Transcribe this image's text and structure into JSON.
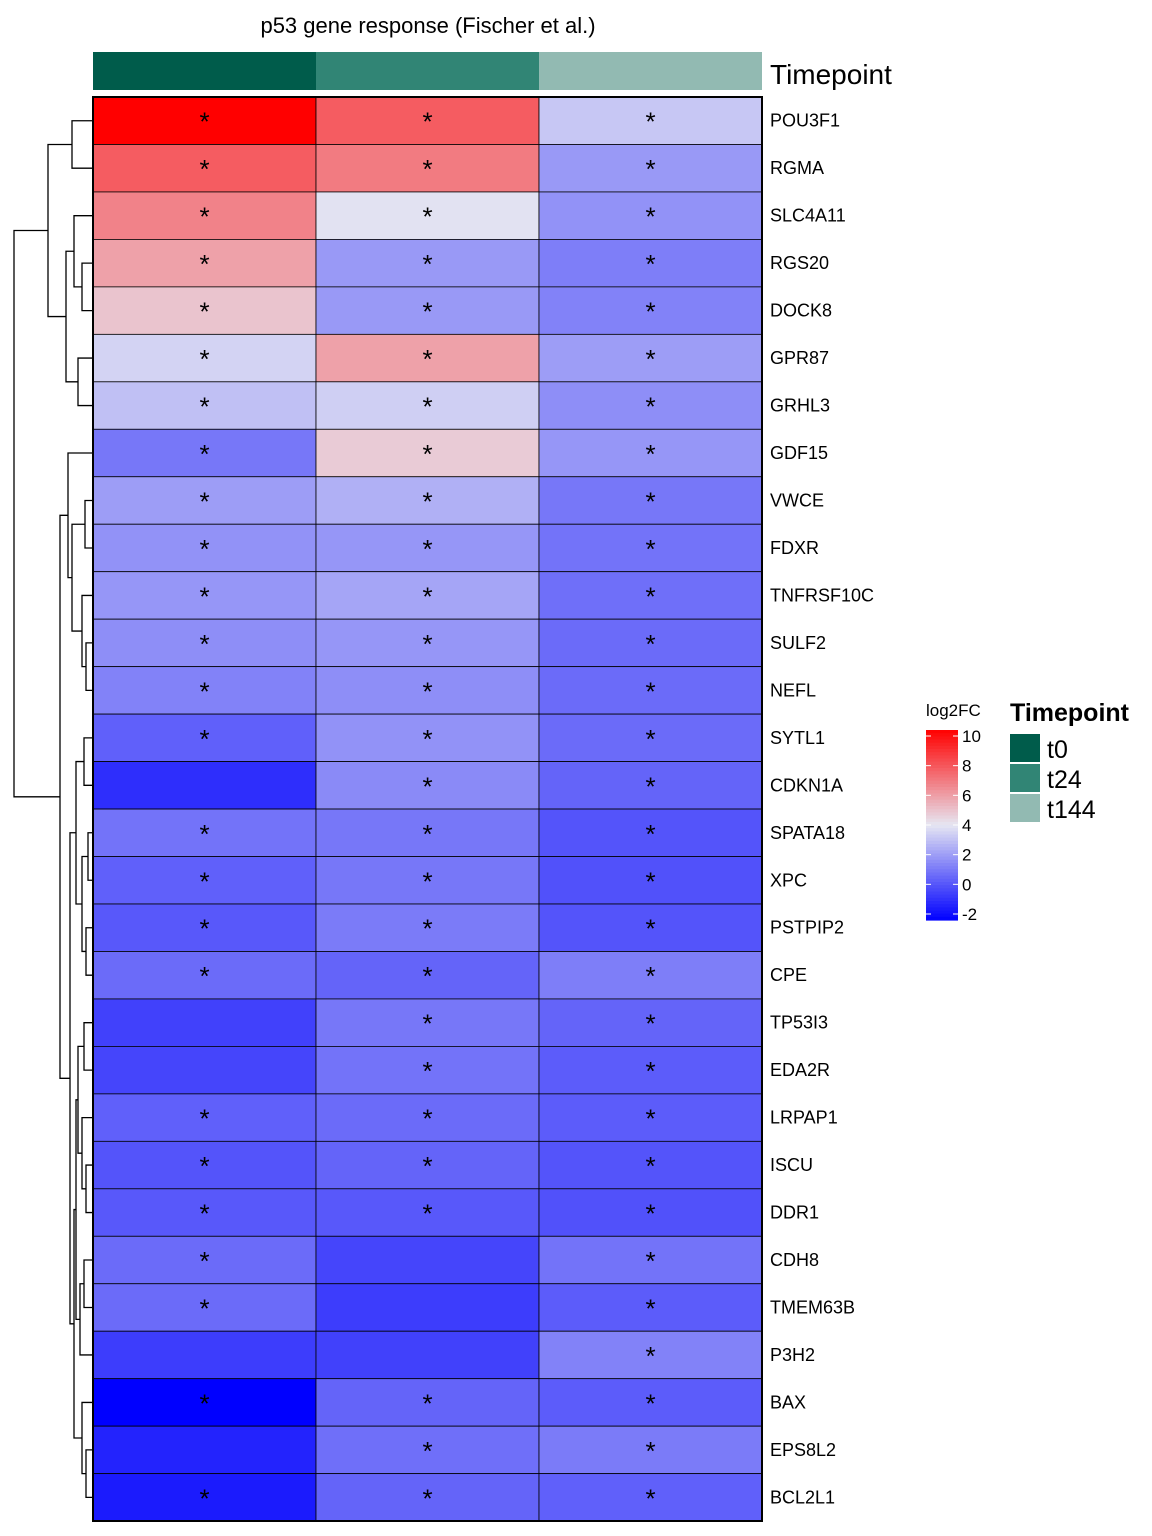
{
  "chart_data": {
    "type": "heatmap",
    "title": "p53 gene response (Fischer et al.)",
    "columns": [
      "t0",
      "t24",
      "t144"
    ],
    "column_annotation": {
      "name": "Timepoint",
      "levels": [
        "t0",
        "t24",
        "t144"
      ],
      "colors": [
        "#005c4b",
        "#318575",
        "#92bab2"
      ]
    },
    "rows": [
      "POU3F1",
      "RGMA",
      "SLC4A11",
      "RGS20",
      "DOCK8",
      "GPR87",
      "GRHL3",
      "GDF15",
      "VWCE",
      "FDXR",
      "TNFRSF10C",
      "SULF2",
      "NEFL",
      "SYTL1",
      "CDKN1A",
      "SPATA18",
      "XPC",
      "PSTPIP2",
      "CPE",
      "TP53I3",
      "EDA2R",
      "LRPAP1",
      "ISCU",
      "DDR1",
      "CDH8",
      "TMEM63B",
      "P3H2",
      "BAX",
      "EPS8L2",
      "BCL2L1"
    ],
    "values": [
      [
        10.0,
        7.6,
        3.2
      ],
      [
        7.6,
        6.8,
        2.0
      ],
      [
        6.6,
        3.9,
        1.8
      ],
      [
        5.8,
        2.0,
        1.3
      ],
      [
        4.9,
        2.0,
        1.4
      ],
      [
        3.5,
        5.8,
        2.1
      ],
      [
        3.0,
        3.4,
        1.7
      ],
      [
        1.1,
        4.7,
        1.9
      ],
      [
        2.1,
        2.6,
        1.1
      ],
      [
        1.8,
        1.9,
        1.0
      ],
      [
        1.9,
        2.3,
        0.9
      ],
      [
        1.7,
        1.9,
        0.8
      ],
      [
        1.4,
        1.7,
        0.8
      ],
      [
        0.5,
        1.8,
        0.8
      ],
      [
        -0.8,
        1.6,
        0.6
      ],
      [
        1.0,
        1.1,
        0.2
      ],
      [
        0.5,
        1.1,
        0.1
      ],
      [
        0.3,
        1.2,
        0.2
      ],
      [
        0.8,
        0.6,
        1.3
      ],
      [
        -0.3,
        1.1,
        0.6
      ],
      [
        -0.2,
        1.0,
        0.4
      ],
      [
        0.5,
        0.8,
        0.4
      ],
      [
        0.2,
        0.6,
        0.2
      ],
      [
        0.3,
        0.3,
        0.1
      ],
      [
        0.8,
        -0.2,
        1.0
      ],
      [
        0.8,
        -0.4,
        0.4
      ],
      [
        -0.4,
        -0.3,
        1.4
      ],
      [
        -2.0,
        0.6,
        0.4
      ],
      [
        -1.1,
        0.9,
        1.2
      ],
      [
        -1.3,
        0.6,
        0.5
      ]
    ],
    "significant": [
      [
        1,
        1,
        1
      ],
      [
        1,
        1,
        1
      ],
      [
        1,
        1,
        1
      ],
      [
        1,
        1,
        1
      ],
      [
        1,
        1,
        1
      ],
      [
        1,
        1,
        1
      ],
      [
        1,
        1,
        1
      ],
      [
        1,
        1,
        1
      ],
      [
        1,
        1,
        1
      ],
      [
        1,
        1,
        1
      ],
      [
        1,
        1,
        1
      ],
      [
        1,
        1,
        1
      ],
      [
        1,
        1,
        1
      ],
      [
        1,
        1,
        1
      ],
      [
        0,
        1,
        1
      ],
      [
        1,
        1,
        1
      ],
      [
        1,
        1,
        1
      ],
      [
        1,
        1,
        1
      ],
      [
        1,
        1,
        1
      ],
      [
        0,
        1,
        1
      ],
      [
        0,
        1,
        1
      ],
      [
        1,
        1,
        1
      ],
      [
        1,
        1,
        1
      ],
      [
        1,
        1,
        1
      ],
      [
        1,
        0,
        1
      ],
      [
        1,
        0,
        1
      ],
      [
        0,
        0,
        1
      ],
      [
        1,
        1,
        1
      ],
      [
        0,
        1,
        1
      ],
      [
        1,
        1,
        1
      ]
    ],
    "significance_mark": "*",
    "color_scale": {
      "title": "log2FC",
      "stops": [
        {
          "value": -2,
          "color": "#0000ff"
        },
        {
          "value": 4,
          "color": "#e6e6f2"
        },
        {
          "value": 10,
          "color": "#ff0000"
        }
      ],
      "ticks": [
        "10",
        "8",
        "6",
        "4",
        "2",
        "0",
        "-2"
      ],
      "range": [
        -2,
        10
      ]
    },
    "legend_placement": "right",
    "row_dendrogram": "left"
  }
}
